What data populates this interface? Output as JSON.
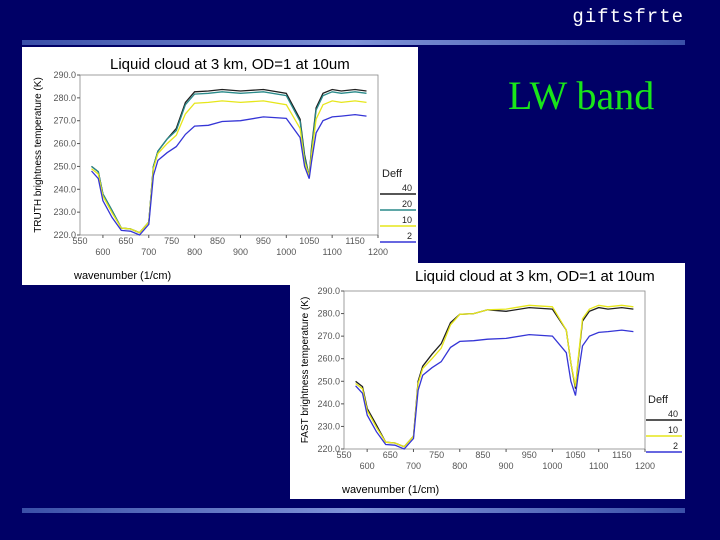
{
  "header": {
    "brand": "giftsfrte"
  },
  "slide": {
    "title": "LW band"
  },
  "chart_data": [
    {
      "type": "line",
      "title": "Liquid cloud at 3 km, OD=1 at 10um",
      "xlabel": "wavenumber (1/cm)",
      "ylabel": "TRUTH brightness temperature (K)",
      "xlim": [
        550,
        1200
      ],
      "ylim": [
        220,
        290
      ],
      "x_ticks_upper": [
        "550",
        "650",
        "750",
        "850",
        "950",
        "1050",
        "1150"
      ],
      "x_ticks_lower": [
        "600",
        "700",
        "800",
        "900",
        "1000",
        "1100",
        "1200"
      ],
      "y_ticks": [
        "220.0",
        "230.0",
        "240.0",
        "250.0",
        "260.0",
        "270.0",
        "280.0",
        "290.0"
      ],
      "legend": {
        "title": "Deff",
        "position": "right"
      },
      "series": [
        {
          "name": "40",
          "color": "#1f1f1f",
          "offset": 0,
          "x": [
            575,
            590,
            600,
            620,
            640,
            660,
            680,
            700,
            710,
            720,
            740,
            760,
            780,
            800,
            830,
            860,
            900,
            950,
            1000,
            1030,
            1040,
            1050,
            1055,
            1065,
            1080,
            1100,
            1120,
            1150,
            1175
          ],
          "y": [
            250,
            247,
            238,
            230,
            223,
            222,
            221,
            225,
            250,
            256,
            262,
            266,
            278,
            282,
            283,
            283,
            283,
            283,
            282,
            270,
            255,
            245,
            258,
            275,
            282,
            283,
            283,
            283,
            283
          ]
        },
        {
          "name": "20",
          "color": "#2a8a8a",
          "offset": -1,
          "x": [
            575,
            590,
            600,
            620,
            640,
            660,
            680,
            700,
            710,
            720,
            740,
            760,
            780,
            800,
            830,
            860,
            900,
            950,
            1000,
            1030,
            1040,
            1050,
            1055,
            1065,
            1080,
            1100,
            1120,
            1150,
            1175
          ],
          "y": [
            250,
            247,
            238,
            230,
            223,
            222,
            221,
            225,
            250,
            256,
            262,
            265,
            277,
            281,
            282,
            282,
            282,
            282,
            281,
            269,
            254,
            245,
            257,
            274,
            281,
            282,
            282,
            282,
            282
          ]
        },
        {
          "name": "10",
          "color": "#e6e61a",
          "offset": -4,
          "x": [
            575,
            590,
            600,
            620,
            640,
            660,
            680,
            700,
            710,
            720,
            740,
            760,
            780,
            800,
            830,
            860,
            900,
            950,
            1000,
            1030,
            1040,
            1050,
            1055,
            1065,
            1080,
            1100,
            1120,
            1150,
            1175
          ],
          "y": [
            249,
            246,
            237,
            229,
            223,
            222,
            221,
            225,
            249,
            255,
            260,
            263,
            273,
            277,
            278,
            278,
            278,
            278,
            277,
            266,
            252,
            245,
            255,
            270,
            277,
            278,
            278,
            278,
            278
          ]
        },
        {
          "name": "2",
          "color": "#3535d6",
          "offset": -10,
          "x": [
            575,
            590,
            600,
            620,
            640,
            660,
            680,
            700,
            710,
            720,
            740,
            760,
            780,
            800,
            830,
            860,
            900,
            950,
            1000,
            1030,
            1040,
            1050,
            1055,
            1065,
            1080,
            1100,
            1120,
            1150,
            1175
          ],
          "y": [
            248,
            244,
            235,
            227,
            222,
            221,
            220,
            224,
            246,
            252,
            256,
            258,
            264,
            267,
            268,
            269,
            270,
            271,
            271,
            262,
            250,
            244,
            252,
            264,
            270,
            271,
            272,
            272,
            272
          ]
        }
      ]
    },
    {
      "type": "line",
      "title": "Liquid cloud at 3 km, OD=1 at 10um",
      "xlabel": "wavenumber (1/cm)",
      "ylabel": "FAST brightness temperature (K)",
      "xlim": [
        550,
        1200
      ],
      "ylim": [
        220,
        290
      ],
      "x_ticks_upper": [
        "550",
        "650",
        "750",
        "850",
        "950",
        "1050",
        "1150"
      ],
      "x_ticks_lower": [
        "600",
        "700",
        "800",
        "900",
        "1000",
        "1100",
        "1200"
      ],
      "y_ticks": [
        "220.0",
        "230.0",
        "240.0",
        "250.0",
        "260.0",
        "270.0",
        "280.0",
        "290.0"
      ],
      "legend": {
        "title": "Deff",
        "position": "right"
      },
      "series": [
        {
          "name": "40",
          "color": "#1f1f1f",
          "x": [
            575,
            590,
            600,
            620,
            640,
            660,
            680,
            700,
            710,
            720,
            740,
            760,
            780,
            800,
            830,
            860,
            900,
            950,
            1000,
            1030,
            1040,
            1050,
            1055,
            1065,
            1080,
            1100,
            1120,
            1150,
            1175
          ],
          "y": [
            250,
            247,
            238,
            230,
            223,
            222,
            221,
            225,
            250,
            256,
            262,
            266,
            276,
            279,
            280,
            281,
            281,
            282,
            282,
            272,
            258,
            246,
            258,
            276,
            281,
            282,
            282,
            282,
            282
          ]
        },
        {
          "name": "10",
          "color": "#e6e61a",
          "x": [
            575,
            590,
            600,
            620,
            640,
            660,
            680,
            700,
            710,
            720,
            740,
            760,
            780,
            800,
            830,
            860,
            900,
            950,
            1000,
            1030,
            1040,
            1050,
            1055,
            1065,
            1080,
            1100,
            1120,
            1150,
            1175
          ],
          "y": [
            249,
            246,
            237,
            229,
            223,
            222,
            221,
            225,
            249,
            255,
            260,
            264,
            275,
            279,
            280,
            281,
            282,
            283,
            283,
            272,
            258,
            247,
            259,
            277,
            282,
            283,
            283,
            283,
            283
          ]
        },
        {
          "name": "2",
          "color": "#3535d6",
          "x": [
            575,
            590,
            600,
            620,
            640,
            660,
            680,
            700,
            710,
            720,
            740,
            760,
            780,
            800,
            830,
            860,
            900,
            950,
            1000,
            1030,
            1040,
            1050,
            1055,
            1065,
            1080,
            1100,
            1120,
            1150,
            1175
          ],
          "y": [
            248,
            244,
            235,
            227,
            222,
            221,
            220,
            224,
            246,
            252,
            256,
            258,
            265,
            267,
            268,
            268,
            269,
            270,
            270,
            262,
            250,
            243,
            252,
            265,
            270,
            271,
            272,
            272,
            272
          ]
        }
      ]
    }
  ]
}
